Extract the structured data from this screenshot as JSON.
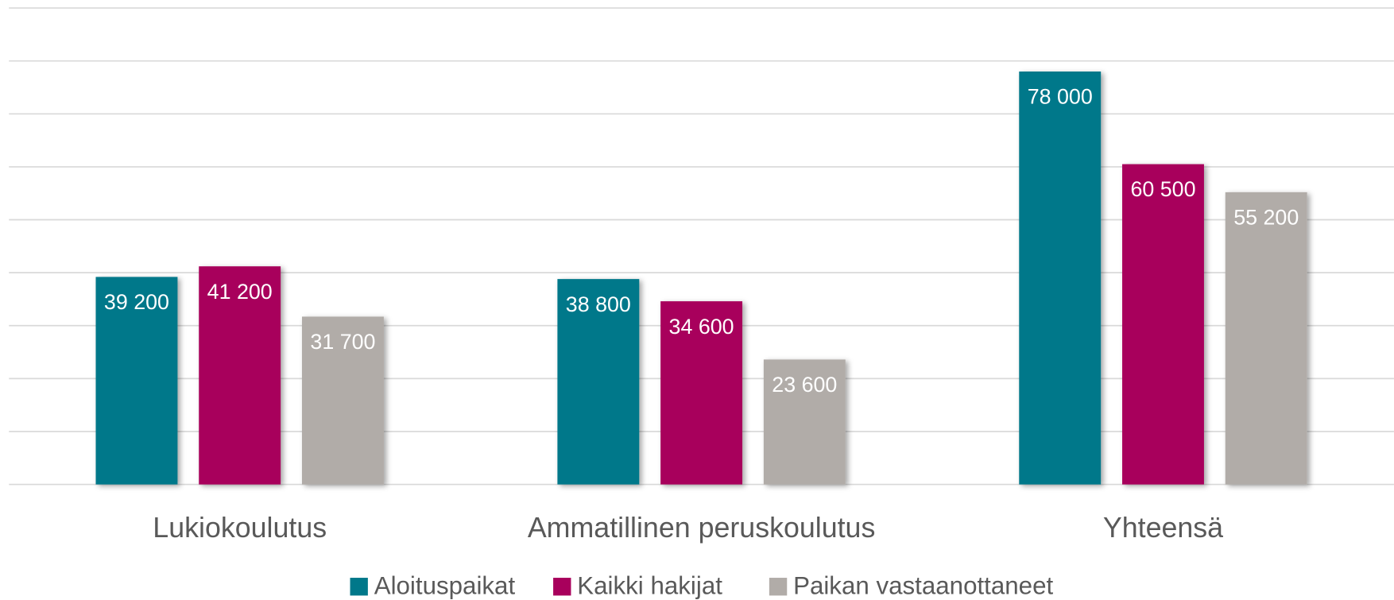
{
  "chart_data": {
    "type": "bar",
    "categories": [
      "Lukiokoulutus",
      "Ammatillinen peruskoulutus",
      "Yhteensä"
    ],
    "series": [
      {
        "name": "Aloituspaikat",
        "color": "#00788a",
        "values": [
          39200,
          38800,
          78000
        ],
        "value_labels": [
          "39 200",
          "38 800",
          "78 000"
        ]
      },
      {
        "name": "Kaikki hakijat",
        "color": "#a8005c",
        "values": [
          41200,
          34600,
          60500
        ],
        "value_labels": [
          "41 200",
          "34 600",
          "60 500"
        ]
      },
      {
        "name": "Paikan vastaanottaneet",
        "color": "#b1aca8",
        "values": [
          31700,
          23600,
          55200
        ],
        "value_labels": [
          "31 700",
          "23 600",
          "55 200"
        ]
      }
    ],
    "ylim": [
      0,
      90000
    ],
    "yticks": [
      0,
      10000,
      20000,
      30000,
      40000,
      50000,
      60000,
      70000,
      80000,
      90000
    ],
    "grid": true,
    "legend": "bottom"
  }
}
